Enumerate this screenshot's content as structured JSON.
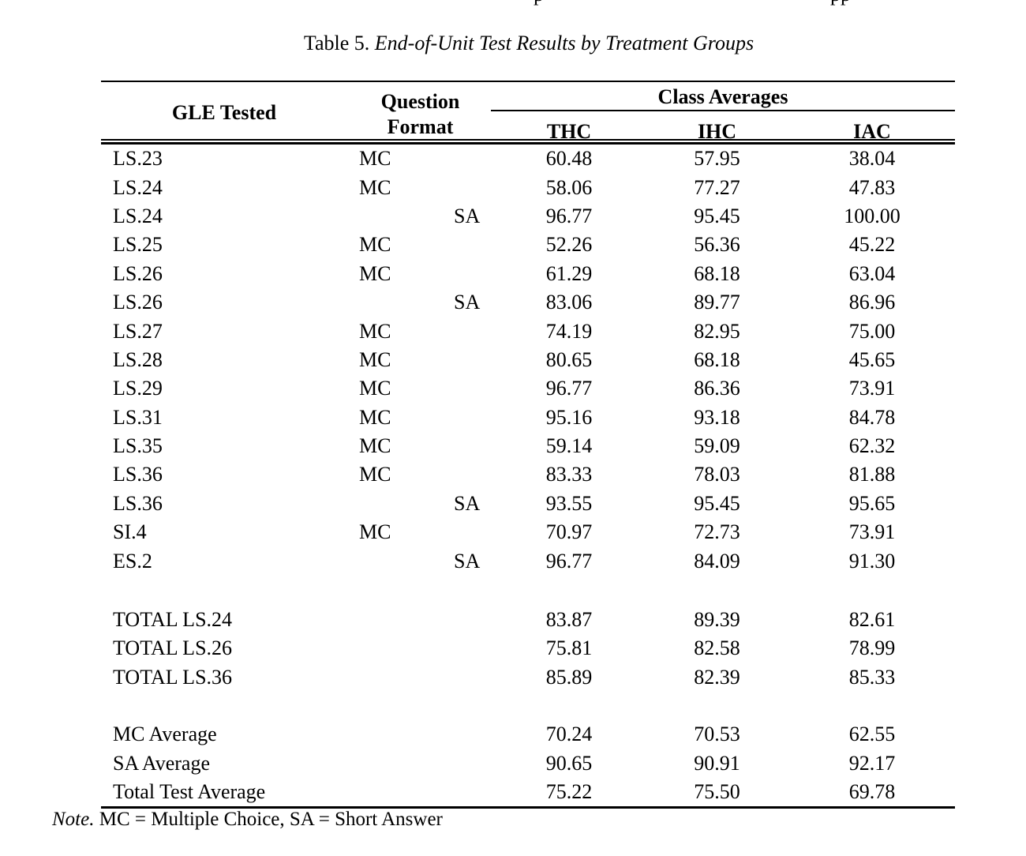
{
  "colors": {
    "ink": "#000000",
    "background": "#ffffff"
  },
  "cropped_line_fragments": {
    "left": "p",
    "right": "pp"
  },
  "title": {
    "prefix": "Table 5. ",
    "italic": "End-of-Unit Test Results by Treatment Groups"
  },
  "table": {
    "headers": {
      "gle": "GLE Tested",
      "question_format_line1": "Question",
      "question_format_line2": "Format",
      "class_averages": "Class Averages",
      "columns": [
        "THC",
        "IHC",
        "IAC"
      ]
    },
    "rows": [
      {
        "gle": "LS.23",
        "format": "MC",
        "thc": "60.48",
        "ihc": "57.95",
        "iac": "38.04"
      },
      {
        "gle": "LS.24",
        "format": "MC",
        "thc": "58.06",
        "ihc": "77.27",
        "iac": "47.83"
      },
      {
        "gle": "LS.24",
        "format": "SA",
        "thc": "96.77",
        "ihc": "95.45",
        "iac": "100.00"
      },
      {
        "gle": "LS.25",
        "format": "MC",
        "thc": "52.26",
        "ihc": "56.36",
        "iac": "45.22"
      },
      {
        "gle": "LS.26",
        "format": "MC",
        "thc": "61.29",
        "ihc": "68.18",
        "iac": "63.04"
      },
      {
        "gle": "LS.26",
        "format": "SA",
        "thc": "83.06",
        "ihc": "89.77",
        "iac": "86.96"
      },
      {
        "gle": "LS.27",
        "format": "MC",
        "thc": "74.19",
        "ihc": "82.95",
        "iac": "75.00"
      },
      {
        "gle": "LS.28",
        "format": "MC",
        "thc": "80.65",
        "ihc": "68.18",
        "iac": "45.65"
      },
      {
        "gle": "LS.29",
        "format": "MC",
        "thc": "96.77",
        "ihc": "86.36",
        "iac": "73.91"
      },
      {
        "gle": "LS.31",
        "format": "MC",
        "thc": "95.16",
        "ihc": "93.18",
        "iac": "84.78"
      },
      {
        "gle": "LS.35",
        "format": "MC",
        "thc": "59.14",
        "ihc": "59.09",
        "iac": "62.32"
      },
      {
        "gle": "LS.36",
        "format": "MC",
        "thc": "83.33",
        "ihc": "78.03",
        "iac": "81.88"
      },
      {
        "gle": "LS.36",
        "format": "SA",
        "thc": "93.55",
        "ihc": "95.45",
        "iac": "95.65"
      },
      {
        "gle": "SI.4",
        "format": "MC",
        "thc": "70.97",
        "ihc": "72.73",
        "iac": "73.91"
      },
      {
        "gle": "ES.2",
        "format": "SA",
        "thc": "96.77",
        "ihc": "84.09",
        "iac": "91.30"
      }
    ],
    "totals": [
      {
        "label": "TOTAL LS.24",
        "thc": "83.87",
        "ihc": "89.39",
        "iac": "82.61"
      },
      {
        "label": "TOTAL LS.26",
        "thc": "75.81",
        "ihc": "82.58",
        "iac": "78.99"
      },
      {
        "label": "TOTAL LS.36",
        "thc": "85.89",
        "ihc": "82.39",
        "iac": "85.33"
      }
    ],
    "averages": [
      {
        "label": "MC Average",
        "thc": "70.24",
        "ihc": "70.53",
        "iac": "62.55"
      },
      {
        "label": "SA Average",
        "thc": "90.65",
        "ihc": "90.91",
        "iac": "92.17"
      },
      {
        "label": "Total Test Average",
        "thc": "75.22",
        "ihc": "75.50",
        "iac": "69.78"
      }
    ]
  },
  "note": {
    "label": "Note.",
    "text": " MC = Multiple Choice, SA = Short Answer"
  }
}
